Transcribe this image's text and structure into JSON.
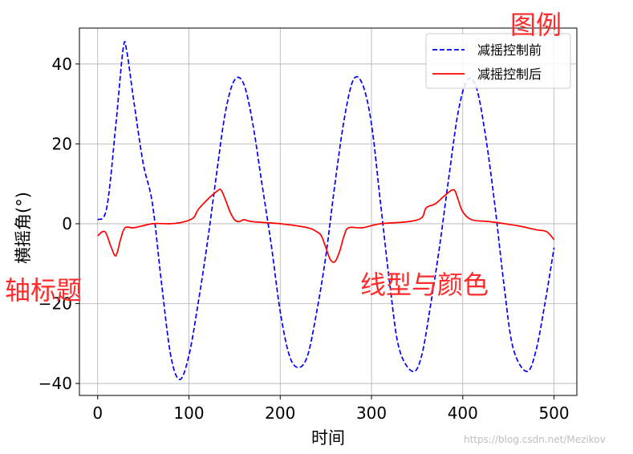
{
  "chart_data": {
    "type": "line",
    "xlabel": "时间",
    "ylabel": "横摇角(°)",
    "xlim": [
      -20,
      525
    ],
    "ylim": [
      -43,
      49
    ],
    "xticks": [
      0,
      100,
      200,
      300,
      400,
      500
    ],
    "yticks": [
      -40,
      -20,
      0,
      20,
      40
    ],
    "grid": true,
    "legend_position": "top-right",
    "series": [
      {
        "name": "减摇控制前",
        "style": "dashed",
        "color": "#0000ff",
        "points": [
          [
            0,
            1
          ],
          [
            10,
            4
          ],
          [
            20,
            25
          ],
          [
            28,
            44
          ],
          [
            32,
            43
          ],
          [
            40,
            30
          ],
          [
            50,
            15
          ],
          [
            60,
            5
          ],
          [
            70,
            -15
          ],
          [
            80,
            -33
          ],
          [
            90,
            -39
          ],
          [
            100,
            -33
          ],
          [
            110,
            -20
          ],
          [
            120,
            -5
          ],
          [
            130,
            12
          ],
          [
            140,
            28
          ],
          [
            150,
            36
          ],
          [
            160,
            35
          ],
          [
            170,
            25
          ],
          [
            180,
            10
          ],
          [
            190,
            -5
          ],
          [
            200,
            -22
          ],
          [
            210,
            -33
          ],
          [
            220,
            -36
          ],
          [
            230,
            -33
          ],
          [
            240,
            -22
          ],
          [
            250,
            -8
          ],
          [
            260,
            10
          ],
          [
            270,
            26
          ],
          [
            280,
            36
          ],
          [
            290,
            35
          ],
          [
            300,
            25
          ],
          [
            310,
            5
          ],
          [
            320,
            -15
          ],
          [
            330,
            -31
          ],
          [
            345,
            -37
          ],
          [
            355,
            -33
          ],
          [
            365,
            -20
          ],
          [
            375,
            -5
          ],
          [
            385,
            12
          ],
          [
            395,
            28
          ],
          [
            405,
            36
          ],
          [
            415,
            34
          ],
          [
            425,
            22
          ],
          [
            435,
            5
          ],
          [
            445,
            -15
          ],
          [
            455,
            -31
          ],
          [
            470,
            -37
          ],
          [
            480,
            -32
          ],
          [
            490,
            -20
          ],
          [
            500,
            -6
          ]
        ]
      },
      {
        "name": "减摇控制后",
        "style": "solid",
        "color": "#ff0000",
        "points": [
          [
            0,
            -3
          ],
          [
            8,
            -2
          ],
          [
            15,
            -6
          ],
          [
            20,
            -8
          ],
          [
            25,
            -4
          ],
          [
            30,
            -1
          ],
          [
            40,
            -1
          ],
          [
            60,
            0
          ],
          [
            80,
            0
          ],
          [
            95,
            0.5
          ],
          [
            105,
            1.5
          ],
          [
            110,
            3.5
          ],
          [
            120,
            6
          ],
          [
            130,
            8
          ],
          [
            135,
            8.5
          ],
          [
            140,
            6
          ],
          [
            145,
            3
          ],
          [
            150,
            1
          ],
          [
            155,
            0.5
          ],
          [
            160,
            1
          ],
          [
            170,
            0.5
          ],
          [
            200,
            0
          ],
          [
            230,
            -1
          ],
          [
            240,
            -2
          ],
          [
            245,
            -3
          ],
          [
            250,
            -6
          ],
          [
            255,
            -9
          ],
          [
            260,
            -9.5
          ],
          [
            265,
            -7
          ],
          [
            270,
            -3
          ],
          [
            275,
            -1
          ],
          [
            290,
            -1
          ],
          [
            310,
            0
          ],
          [
            340,
            0.5
          ],
          [
            355,
            1.5
          ],
          [
            360,
            4
          ],
          [
            370,
            5
          ],
          [
            380,
            7
          ],
          [
            390,
            8.5
          ],
          [
            395,
            6
          ],
          [
            400,
            3
          ],
          [
            410,
            1
          ],
          [
            430,
            0.5
          ],
          [
            460,
            -0.5
          ],
          [
            480,
            -1.5
          ],
          [
            492,
            -2
          ],
          [
            500,
            -4
          ]
        ]
      }
    ]
  },
  "annotations": {
    "legend_note": "图例",
    "axis_note": "轴标题",
    "line_note": "线型与颜色"
  },
  "watermark": "https://blog.csdn.net/Mezikov"
}
